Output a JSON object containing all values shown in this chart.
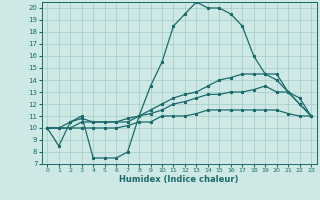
{
  "background_color": "#cde8e5",
  "grid_color": "#aacfcc",
  "line_color": "#1a6b6b",
  "xlabel": "Humidex (Indice chaleur)",
  "xlim": [
    -0.5,
    23.5
  ],
  "ylim": [
    7,
    20.5
  ],
  "xticks": [
    0,
    1,
    2,
    3,
    4,
    5,
    6,
    7,
    8,
    9,
    10,
    11,
    12,
    13,
    14,
    15,
    16,
    17,
    18,
    19,
    20,
    21,
    22,
    23
  ],
  "yticks": [
    7,
    8,
    9,
    10,
    11,
    12,
    13,
    14,
    15,
    16,
    17,
    18,
    19,
    20
  ],
  "curve1_x": [
    0,
    1,
    2,
    3,
    4,
    5,
    6,
    7,
    8,
    9,
    10,
    11,
    12,
    13,
    14,
    15,
    16,
    17,
    18,
    19,
    20,
    21,
    22,
    23
  ],
  "curve1_y": [
    10.0,
    8.5,
    10.5,
    11.0,
    7.5,
    7.5,
    7.5,
    8.0,
    11.0,
    13.5,
    15.5,
    18.5,
    19.5,
    20.5,
    20.0,
    20.0,
    19.5,
    18.5,
    16.0,
    14.5,
    14.5,
    13.0,
    12.5,
    11.0
  ],
  "curve2_x": [
    0,
    1,
    2,
    3,
    4,
    5,
    6,
    7,
    8,
    9,
    10,
    11,
    12,
    13,
    14,
    15,
    16,
    17,
    18,
    19,
    20,
    21,
    22,
    23
  ],
  "curve2_y": [
    10.0,
    10.0,
    10.5,
    10.8,
    10.5,
    10.5,
    10.5,
    10.8,
    11.0,
    11.5,
    12.0,
    12.5,
    12.8,
    13.0,
    13.5,
    14.0,
    14.2,
    14.5,
    14.5,
    14.5,
    14.0,
    13.0,
    12.0,
    11.0
  ],
  "curve3_x": [
    0,
    1,
    2,
    3,
    4,
    5,
    6,
    7,
    8,
    9,
    10,
    11,
    12,
    13,
    14,
    15,
    16,
    17,
    18,
    19,
    20,
    21,
    22,
    23
  ],
  "curve3_y": [
    10.0,
    10.0,
    10.0,
    10.5,
    10.5,
    10.5,
    10.5,
    10.5,
    11.0,
    11.2,
    11.5,
    12.0,
    12.2,
    12.5,
    12.8,
    12.8,
    13.0,
    13.0,
    13.2,
    13.5,
    13.0,
    13.0,
    12.0,
    11.0
  ],
  "curve4_x": [
    0,
    1,
    2,
    3,
    4,
    5,
    6,
    7,
    8,
    9,
    10,
    11,
    12,
    13,
    14,
    15,
    16,
    17,
    18,
    19,
    20,
    21,
    22,
    23
  ],
  "curve4_y": [
    10.0,
    10.0,
    10.0,
    10.0,
    10.0,
    10.0,
    10.0,
    10.2,
    10.5,
    10.5,
    11.0,
    11.0,
    11.0,
    11.2,
    11.5,
    11.5,
    11.5,
    11.5,
    11.5,
    11.5,
    11.5,
    11.2,
    11.0,
    11.0
  ]
}
